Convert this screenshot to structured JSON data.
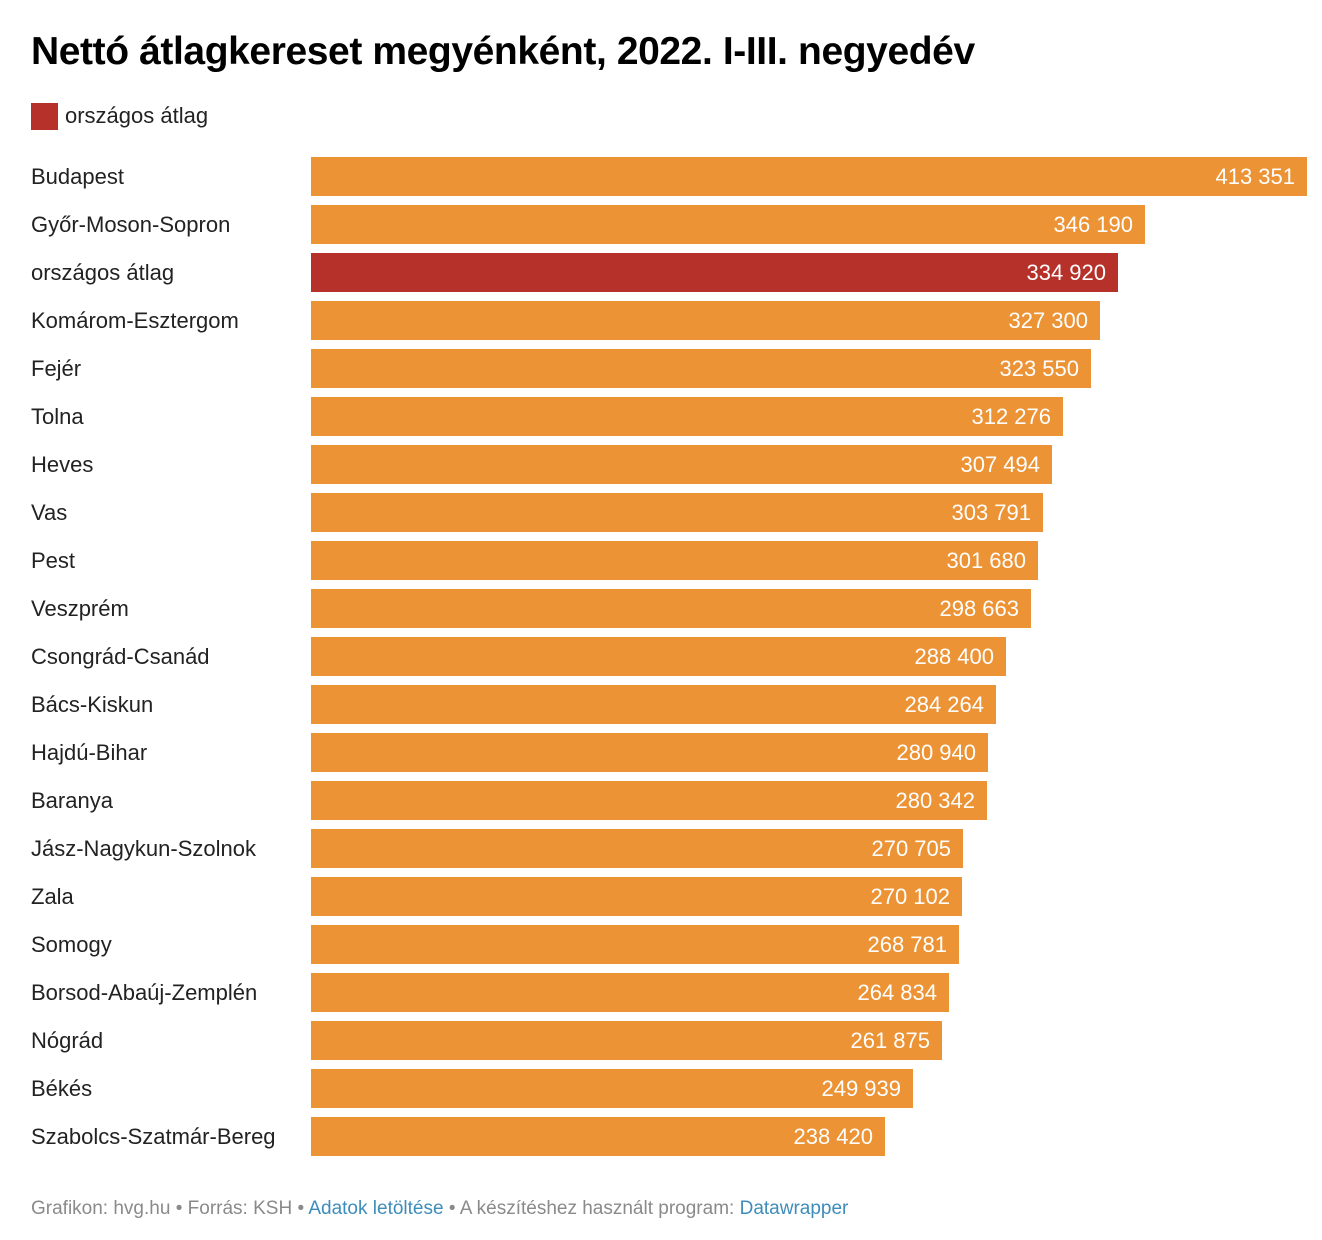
{
  "title": "Nettó átlagkereset megyénként, 2022. I-III. negyedév",
  "legend": {
    "label": "országos átlag",
    "color": "#b7312b"
  },
  "colors": {
    "bar": "#ec9335",
    "highlight": "#b7312b"
  },
  "footer": {
    "credit": "Grafikon: hvg.hu",
    "sep1": " • ",
    "source": "Forrás: KSH",
    "sep2": " • ",
    "download_link": "Adatok letöltése",
    "sep3": " • ",
    "tool_text": "A készítéshez használt program: ",
    "tool_link": "Datawrapper"
  },
  "chart_data": {
    "type": "bar",
    "orientation": "horizontal",
    "title": "Nettó átlagkereset megyénként, 2022. I-III. negyedév",
    "highlight_category": "országos átlag",
    "categories": [
      "Budapest",
      "Győr-Moson-Sopron",
      "országos átlag",
      "Komárom-Esztergom",
      "Fejér",
      "Tolna",
      "Heves",
      "Vas",
      "Pest",
      "Veszprém",
      "Csongrád-Csanád",
      "Bács-Kiskun",
      "Hajdú-Bihar",
      "Baranya",
      "Jász-Nagykun-Szolnok",
      "Zala",
      "Somogy",
      "Borsod-Abaúj-Zemplén",
      "Nógrád",
      "Békés",
      "Szabolcs-Szatmár-Bereg"
    ],
    "values": [
      413351,
      346190,
      334920,
      327300,
      323550,
      312276,
      307494,
      303791,
      301680,
      298663,
      288400,
      284264,
      280940,
      280342,
      270705,
      270102,
      268781,
      264834,
      261875,
      249939,
      238420
    ],
    "value_labels": [
      "413 351",
      "346 190",
      "334 920",
      "327 300",
      "323 550",
      "312 276",
      "307 494",
      "303 791",
      "301 680",
      "298 663",
      "288 400",
      "284 264",
      "280 940",
      "280 342",
      "270 705",
      "270 102",
      "268 781",
      "264 834",
      "261 875",
      "249 939",
      "238 420"
    ],
    "xlim": [
      0,
      413351
    ],
    "grid": false,
    "legend_position": "top-left"
  }
}
